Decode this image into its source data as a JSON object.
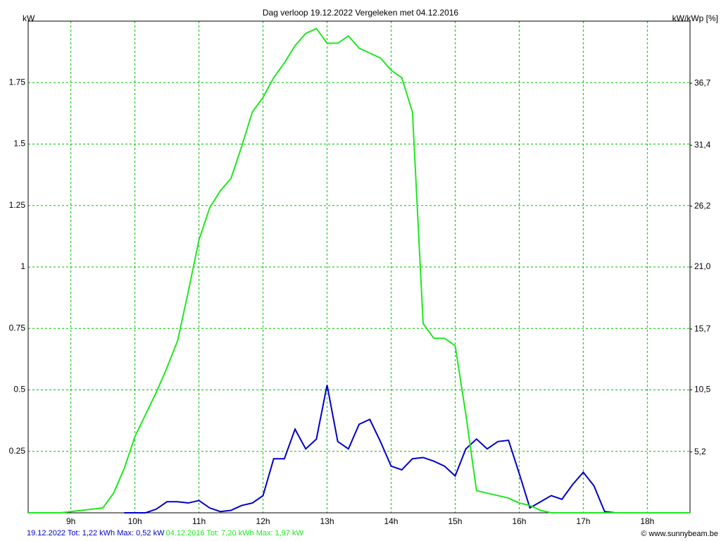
{
  "chart_data": {
    "type": "line",
    "title": "Dag  verloop 19.12.2022   Vergeleken met 04.12.2016",
    "ylabel": "kW",
    "y2label": "kW/kWp [%]",
    "credit": "© www.sunnybeam.be",
    "xlim": [
      500,
      1120
    ],
    "xticks": [
      {
        "value": 540,
        "label": "9h"
      },
      {
        "value": 600,
        "label": "10h"
      },
      {
        "value": 660,
        "label": "11h"
      },
      {
        "value": 720,
        "label": "12h"
      },
      {
        "value": 780,
        "label": "13h"
      },
      {
        "value": 840,
        "label": "14h"
      },
      {
        "value": 900,
        "label": "15h"
      },
      {
        "value": 960,
        "label": "16h"
      },
      {
        "value": 1020,
        "label": "17h"
      },
      {
        "value": 1080,
        "label": "18h"
      }
    ],
    "ylim": [
      0,
      2
    ],
    "yticks": [
      0.25,
      0.5,
      0.75,
      1,
      1.25,
      1.5,
      1.75
    ],
    "y2lim": [
      0,
      42
    ],
    "y2ticks": [
      {
        "value": 5.2,
        "label": "5,2"
      },
      {
        "value": 10.5,
        "label": "10,5"
      },
      {
        "value": 15.7,
        "label": "15,7"
      },
      {
        "value": 21.0,
        "label": "21,0"
      },
      {
        "value": 26.2,
        "label": "26,2"
      },
      {
        "value": 31.4,
        "label": "31,4"
      },
      {
        "value": 36.7,
        "label": "36,7"
      }
    ],
    "grid": true,
    "series": [
      {
        "name": "19.12.2022 Tot: 1,22 kWh Max: 0,52 kW",
        "color": "#0000c8",
        "x": [
          590,
          600,
          610,
          620,
          630,
          640,
          650,
          660,
          670,
          680,
          690,
          700,
          710,
          720,
          730,
          740,
          750,
          760,
          770,
          780,
          790,
          800,
          810,
          820,
          830,
          840,
          850,
          860,
          870,
          880,
          890,
          900,
          910,
          920,
          930,
          940,
          950,
          960,
          970,
          980,
          990,
          1000,
          1010,
          1020,
          1030,
          1040,
          1050
        ],
        "values": [
          0,
          0,
          0,
          0.015,
          0.045,
          0.045,
          0.04,
          0.05,
          0.02,
          0.005,
          0.01,
          0.03,
          0.04,
          0.07,
          0.22,
          0.22,
          0.34,
          0.26,
          0.3,
          0.52,
          0.29,
          0.26,
          0.36,
          0.38,
          0.29,
          0.19,
          0.175,
          0.22,
          0.225,
          0.21,
          0.19,
          0.15,
          0.26,
          0.3,
          0.26,
          0.29,
          0.295,
          0.16,
          0.02,
          0.045,
          0.07,
          0.055,
          0.115,
          0.165,
          0.11,
          0.005,
          0
        ]
      },
      {
        "name": "04.12.2016 Tot: 7,20 kWh Max: 1,97 kW",
        "color": "#1ee81e",
        "x": [
          500,
          510,
          520,
          530,
          540,
          550,
          560,
          570,
          580,
          590,
          600,
          610,
          620,
          630,
          640,
          650,
          660,
          670,
          680,
          690,
          700,
          710,
          720,
          730,
          740,
          750,
          760,
          770,
          780,
          790,
          800,
          810,
          820,
          830,
          840,
          850,
          860,
          870,
          880,
          890,
          900,
          910,
          920,
          930,
          940,
          950,
          960,
          970,
          980,
          990,
          1000,
          1010,
          1020,
          1030,
          1040,
          1050,
          1060,
          1070,
          1080,
          1090,
          1100,
          1110,
          1120
        ],
        "values": [
          0,
          0,
          0,
          0,
          0.005,
          0.01,
          0.015,
          0.02,
          0.08,
          0.18,
          0.31,
          0.4,
          0.49,
          0.59,
          0.7,
          0.9,
          1.11,
          1.24,
          1.31,
          1.36,
          1.49,
          1.63,
          1.69,
          1.77,
          1.83,
          1.9,
          1.95,
          1.97,
          1.91,
          1.91,
          1.94,
          1.89,
          1.87,
          1.85,
          1.8,
          1.77,
          1.63,
          0.77,
          0.71,
          0.71,
          0.68,
          0.4,
          0.09,
          0.08,
          0.07,
          0.06,
          0.04,
          0.03,
          0.01,
          0,
          0,
          0,
          0,
          0,
          0,
          0,
          0,
          0,
          0,
          0,
          0,
          0,
          0
        ]
      }
    ]
  }
}
